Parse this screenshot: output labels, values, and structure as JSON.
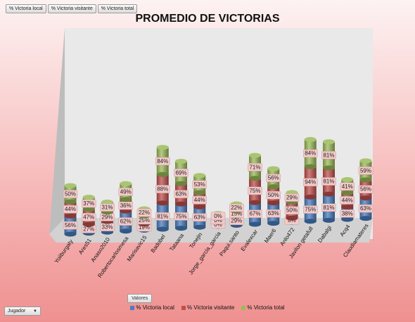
{
  "field_buttons": [
    "% Victoria local",
    "% Victoria visitante",
    "% Victoria total"
  ],
  "filter_button": "Jugador",
  "values_button": "Valores",
  "colors": {
    "local": "#4a7ec0",
    "visitante": "#c0504d",
    "total": "#9bbb59"
  },
  "chart_data": {
    "type": "bar",
    "title": "PROMEDIO DE VICTORIAS",
    "stacked": true,
    "categories": [
      "Yoiiburgaty",
      "Ares51",
      "Anaso2010",
      "Robertocarlosmesa",
      "Marisavic15",
      "Badobel",
      "Tataana",
      "Tonejin",
      "Jorge_garcia_garcia",
      "Paqui.santo",
      "Evalexcar",
      "Maer6",
      "Anlo472",
      "Javilon getafull",
      "Dabalgi",
      "Acq4",
      "Claudiamateres"
    ],
    "series": [
      {
        "name": "% Victoria local",
        "values": [
          "56%",
          "27%",
          "33%",
          "62%",
          "19%",
          "81%",
          "75%",
          "63%",
          "0%",
          "29%",
          "67%",
          "63%",
          "8%",
          "75%",
          "81%",
          "38%",
          "63%"
        ]
      },
      {
        "name": "% Victoria visitante",
        "values": [
          "44%",
          "47%",
          "29%",
          "36%",
          "25%",
          "88%",
          "63%",
          "44%",
          "0%",
          "15%",
          "75%",
          "50%",
          "50%",
          "94%",
          "81%",
          "44%",
          "56%"
        ]
      },
      {
        "name": "% Victoria total",
        "values": [
          "50%",
          "37%",
          "31%",
          "49%",
          "22%",
          "84%",
          "69%",
          "53%",
          "0%",
          "22%",
          "71%",
          "56%",
          "29%",
          "84%",
          "81%",
          "41%",
          "59%"
        ]
      }
    ],
    "legend_position": "bottom",
    "grid": false
  }
}
